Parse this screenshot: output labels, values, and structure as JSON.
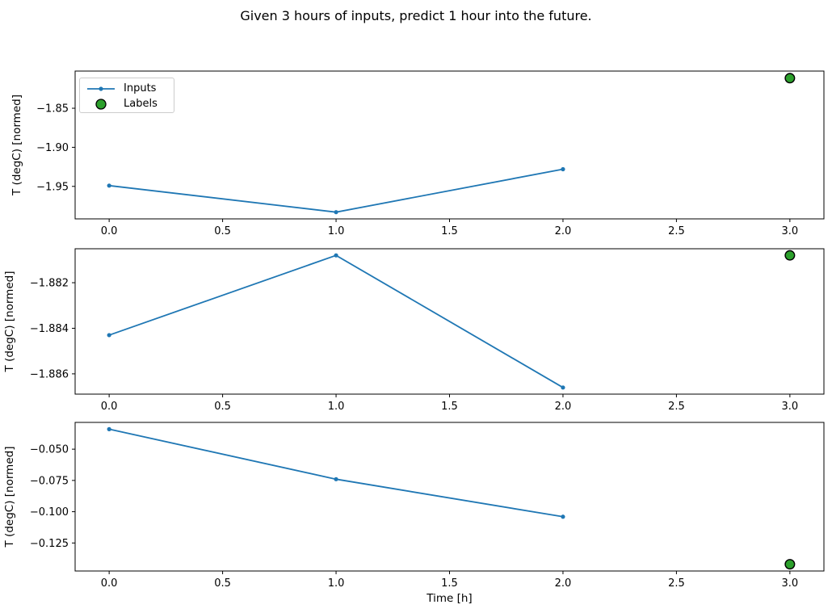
{
  "figure": {
    "title": "Given 3 hours of inputs, predict 1 hour into the future.",
    "background": "#ffffff"
  },
  "legend": {
    "items": [
      {
        "label": "Inputs",
        "glyph": "line-with-dot-marker",
        "color": "#1f77b4"
      },
      {
        "label": "Labels",
        "glyph": "filled-circle",
        "color": "#2ca02c",
        "edge_color": "#000000"
      }
    ],
    "position": "upper-left-of-first-subplot"
  },
  "chart_data": [
    {
      "type": "line",
      "ylabel": "T (degC) [normed]",
      "xlabel": "",
      "xlim": [
        -0.15,
        3.15
      ],
      "ylim": [
        -1.9916,
        -1.8024
      ],
      "x_ticks": [
        0.0,
        0.5,
        1.0,
        1.5,
        2.0,
        2.5,
        3.0
      ],
      "x_tick_labels": [
        "0.0",
        "0.5",
        "1.0",
        "1.5",
        "2.0",
        "2.5",
        "3.0"
      ],
      "y_ticks": [
        -1.85,
        -1.9,
        -1.95
      ],
      "y_tick_labels": [
        "−1.85",
        "−1.90",
        "−1.95"
      ],
      "grid": false,
      "series": [
        {
          "name": "Inputs",
          "style": "line-marker",
          "color": "#1f77b4",
          "x": [
            0,
            1,
            2
          ],
          "y": [
            -1.949,
            -1.983,
            -1.928
          ]
        },
        {
          "name": "Labels",
          "style": "scatter",
          "color": "#2ca02c",
          "edge_color": "#000000",
          "x": [
            3
          ],
          "y": [
            -1.8115
          ]
        }
      ]
    },
    {
      "type": "line",
      "ylabel": "T (degC) [normed]",
      "xlabel": "",
      "xlim": [
        -0.15,
        3.15
      ],
      "ylim": [
        -1.88689,
        -1.88051
      ],
      "x_ticks": [
        0.0,
        0.5,
        1.0,
        1.5,
        2.0,
        2.5,
        3.0
      ],
      "x_tick_labels": [
        "0.0",
        "0.5",
        "1.0",
        "1.5",
        "2.0",
        "2.5",
        "3.0"
      ],
      "y_ticks": [
        -1.882,
        -1.884,
        -1.886
      ],
      "y_tick_labels": [
        "−1.882",
        "−1.884",
        "−1.886"
      ],
      "grid": false,
      "series": [
        {
          "name": "Inputs",
          "style": "line-marker",
          "color": "#1f77b4",
          "x": [
            0,
            1,
            2
          ],
          "y": [
            -1.8843,
            -1.8808,
            -1.8866
          ]
        },
        {
          "name": "Labels",
          "style": "scatter",
          "color": "#2ca02c",
          "edge_color": "#000000",
          "x": [
            3
          ],
          "y": [
            -1.8808
          ]
        }
      ]
    },
    {
      "type": "line",
      "ylabel": "T (degC) [normed]",
      "xlabel": "Time [h]",
      "xlim": [
        -0.15,
        3.15
      ],
      "ylim": [
        -0.1474,
        -0.0286
      ],
      "x_ticks": [
        0.0,
        0.5,
        1.0,
        1.5,
        2.0,
        2.5,
        3.0
      ],
      "x_tick_labels": [
        "0.0",
        "0.5",
        "1.0",
        "1.5",
        "2.0",
        "2.5",
        "3.0"
      ],
      "y_ticks": [
        -0.05,
        -0.075,
        -0.1,
        -0.125
      ],
      "y_tick_labels": [
        "−0.050",
        "−0.075",
        "−0.100",
        "−0.125"
      ],
      "grid": false,
      "series": [
        {
          "name": "Inputs",
          "style": "line-marker",
          "color": "#1f77b4",
          "x": [
            0,
            1,
            2
          ],
          "y": [
            -0.034,
            -0.074,
            -0.104
          ]
        },
        {
          "name": "Labels",
          "style": "scatter",
          "color": "#2ca02c",
          "edge_color": "#000000",
          "x": [
            3
          ],
          "y": [
            -0.142
          ]
        }
      ]
    }
  ]
}
